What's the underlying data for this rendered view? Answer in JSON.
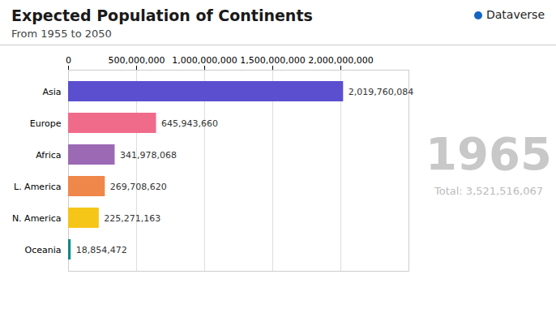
{
  "chart_data": {
    "type": "bar",
    "orientation": "horizontal",
    "title": "Expected Population of Continents",
    "subtitle": "From 1955 to 2050",
    "categories": [
      "Asia",
      "Europe",
      "Africa",
      "L. America",
      "N. America",
      "Oceania"
    ],
    "values": [
      2019760084,
      645943660,
      341978068,
      269708620,
      225271163,
      18854472
    ],
    "value_labels": [
      "2,019,760,084",
      "645,943,660",
      "341,978,068",
      "269,708,620",
      "225,271,163",
      "18,854,472"
    ],
    "colors": [
      "#5b4fcf",
      "#f06b8a",
      "#9c6ab5",
      "#f0874a",
      "#f5c518",
      "#0d8a8a"
    ],
    "xlim": [
      0,
      2500000000
    ],
    "xticks": [
      0,
      {
        "value": 500000000,
        "label": "500,000,000"
      },
      {
        "value": 1000000000,
        "label": "1,000,000,000"
      },
      {
        "value": 1500000000,
        "label": "1,500,000,000"
      },
      {
        "value": 2000000000,
        "label": "2,000,000,000"
      }
    ],
    "grid": true,
    "data_labels": true,
    "annotations": [
      "1965",
      "Total: 3,521,516,067",
      "Dataverse"
    ]
  }
}
